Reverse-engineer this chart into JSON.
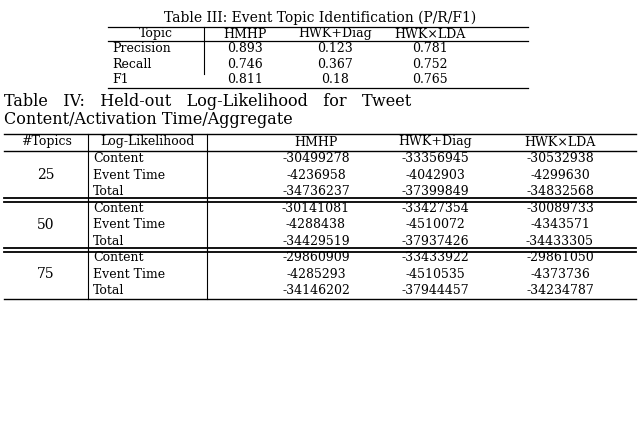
{
  "table3_title": "Table III: Event Topic Identification (P/R/F1)",
  "table3_headers": [
    "Topic",
    "HMHP",
    "HWK+Diag",
    "HWK×LDA"
  ],
  "table3_rows": [
    [
      "Precision",
      "0.893",
      "0.123",
      "0.781"
    ],
    [
      "Recall",
      "0.746",
      "0.367",
      "0.752"
    ],
    [
      "F1",
      "0.811",
      "0.18",
      "0.765"
    ]
  ],
  "table4_title_line1": "Table   IV:   Held-out   Log-Likelihood   for   Tweet",
  "table4_title_line2": "Content/Activation Time/Aggregate",
  "table4_headers": [
    "#Topics",
    "Log-Likelihood",
    "HMHP",
    "HWK+Diag",
    "HWK×LDA"
  ],
  "table4_groups": [
    {
      "topic": "25",
      "rows": [
        [
          "Content",
          "-30499278",
          "-33356945",
          "-30532938"
        ],
        [
          "Event Time",
          "-4236958",
          "-4042903",
          "-4299630"
        ],
        [
          "Total",
          "-34736237",
          "-37399849",
          "-34832568"
        ]
      ]
    },
    {
      "topic": "50",
      "rows": [
        [
          "Content",
          "-30141081",
          "-33427354",
          "-30089733"
        ],
        [
          "Event Time",
          "-4288438",
          "-4510072",
          "-4343571"
        ],
        [
          "Total",
          "-34429519",
          "-37937426",
          "-34433305"
        ]
      ]
    },
    {
      "topic": "75",
      "rows": [
        [
          "Content",
          "-29860909",
          "-33433922",
          "-29861050"
        ],
        [
          "Event Time",
          "-4285293",
          "-4510535",
          "-4373736"
        ],
        [
          "Total",
          "-34146202",
          "-37944457",
          "-34234787"
        ]
      ]
    }
  ],
  "bg_color": "#ffffff",
  "text_color": "#000000",
  "fs": 9.0,
  "tfs": 10.0,
  "t4tfs": 11.5
}
